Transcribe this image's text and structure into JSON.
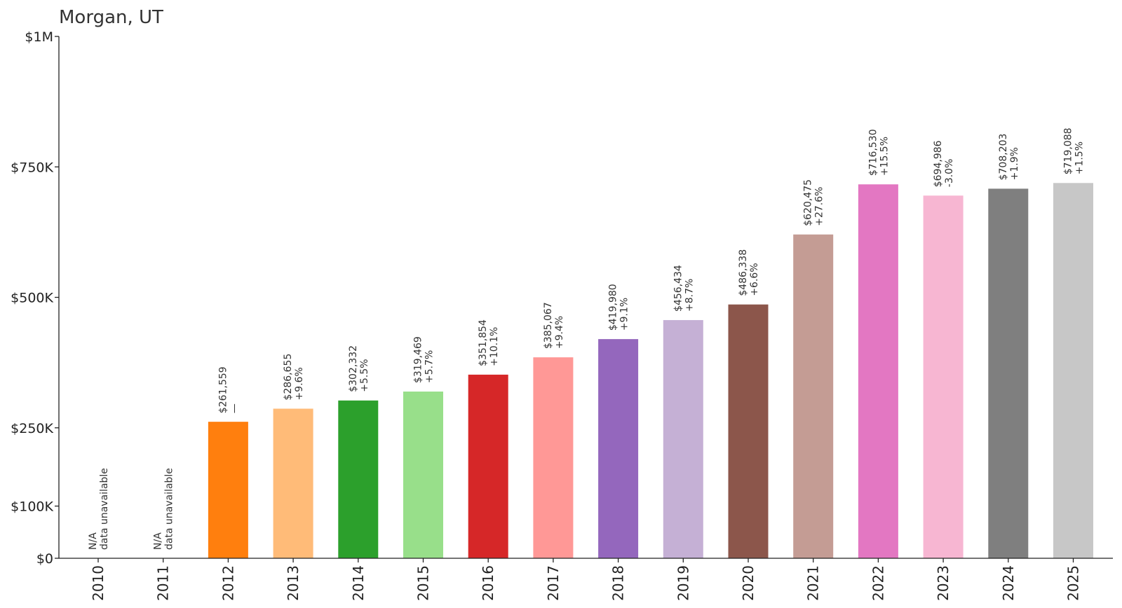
{
  "chart_data": {
    "type": "bar",
    "title": "Morgan, UT",
    "xlabel": "",
    "ylabel": "",
    "ylim": [
      0,
      1000000
    ],
    "grid": false,
    "legend": "none",
    "yticks": [
      {
        "value": 0,
        "label": "$0"
      },
      {
        "value": 100000,
        "label": "$100K"
      },
      {
        "value": 250000,
        "label": "$250K"
      },
      {
        "value": 500000,
        "label": "$500K"
      },
      {
        "value": 750000,
        "label": "$750K"
      },
      {
        "value": 1000000,
        "label": "$1M"
      }
    ],
    "categories": [
      "2010",
      "2011",
      "2012",
      "2013",
      "2014",
      "2015",
      "2016",
      "2017",
      "2018",
      "2019",
      "2020",
      "2021",
      "2022",
      "2023",
      "2024",
      "2025"
    ],
    "values": [
      null,
      null,
      261559,
      286655,
      302332,
      319469,
      351854,
      385067,
      419980,
      456434,
      486338,
      620475,
      716530,
      694986,
      708203,
      719088
    ],
    "value_labels": [
      "N/A",
      "N/A",
      "$261,559",
      "$286,655",
      "$302,332",
      "$319,469",
      "$351,854",
      "$385,067",
      "$419,980",
      "$456,434",
      "$486,338",
      "$620,475",
      "$716,530",
      "$694,986",
      "$708,203",
      "$719,088"
    ],
    "change_labels": [
      "data unavailable",
      "data unavailable",
      "—",
      "+9.6%",
      "+5.5%",
      "+5.7%",
      "+10.1%",
      "+9.4%",
      "+9.1%",
      "+8.7%",
      "+6.6%",
      "+27.6%",
      "+15.5%",
      "-3.0%",
      "+1.9%",
      "+1.5%"
    ],
    "colors": [
      "#1f77b4",
      "#aec7e8",
      "#ff7f0e",
      "#ffbb78",
      "#2ca02c",
      "#98df8a",
      "#d62728",
      "#ff9896",
      "#9467bd",
      "#c5b0d5",
      "#8c564b",
      "#c49c94",
      "#e377c2",
      "#f7b6d2",
      "#7f7f7f",
      "#c7c7c7"
    ]
  }
}
